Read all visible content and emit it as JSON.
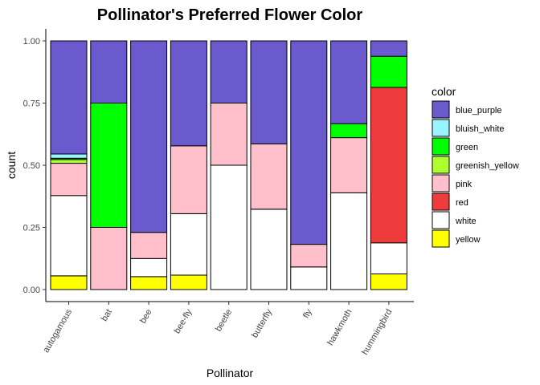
{
  "chart_data": {
    "type": "bar",
    "stacked": true,
    "title": "Pollinator's Preferred Flower Color",
    "xlabel": "Pollinator",
    "ylabel": "count",
    "ylim": [
      0,
      1
    ],
    "yticks": [
      "0.00",
      "0.25",
      "0.50",
      "0.75",
      "1.00"
    ],
    "grid": false,
    "legend": {
      "title": "color",
      "placement": "right"
    },
    "categories": [
      "autogamous",
      "bat",
      "bee",
      "bee-fly",
      "beetle",
      "butterfly",
      "fly",
      "hawkmoth",
      "hummingbird"
    ],
    "series": [
      {
        "name": "yellow",
        "color": "#FFFF00",
        "values": [
          0.055,
          0.0,
          0.052,
          0.058,
          0.0,
          0.0,
          0.0,
          0.0,
          0.063
        ]
      },
      {
        "name": "white",
        "color": "#FFFFFF",
        "values": [
          0.323,
          0.0,
          0.073,
          0.247,
          0.5,
          0.323,
          0.091,
          0.389,
          0.125
        ]
      },
      {
        "name": "red",
        "color": "#EE3B3B",
        "values": [
          0.0,
          0.0,
          0.0,
          0.0,
          0.0,
          0.0,
          0.0,
          0.0,
          0.625
        ]
      },
      {
        "name": "pink",
        "color": "#FFC0CB",
        "values": [
          0.13,
          0.25,
          0.105,
          0.273,
          0.25,
          0.263,
          0.091,
          0.222,
          0.0
        ]
      },
      {
        "name": "greenish_yellow",
        "color": "#ADFF2F",
        "values": [
          0.015,
          0.0,
          0.0,
          0.0,
          0.0,
          0.0,
          0.0,
          0.0,
          0.0
        ]
      },
      {
        "name": "green",
        "color": "#00FF00",
        "values": [
          0.005,
          0.5,
          0.0,
          0.0,
          0.0,
          0.0,
          0.0,
          0.056,
          0.125
        ]
      },
      {
        "name": "bluish_white",
        "color": "#98F5FF",
        "values": [
          0.017,
          0.0,
          0.0,
          0.0,
          0.0,
          0.0,
          0.0,
          0.0,
          0.0
        ]
      },
      {
        "name": "blue_purple",
        "color": "#6A5ACD",
        "values": [
          0.455,
          0.25,
          0.77,
          0.422,
          0.25,
          0.414,
          0.818,
          0.333,
          0.062
        ]
      }
    ],
    "legend_order": [
      "blue_purple",
      "bluish_white",
      "green",
      "greenish_yellow",
      "pink",
      "red",
      "white",
      "yellow"
    ]
  }
}
